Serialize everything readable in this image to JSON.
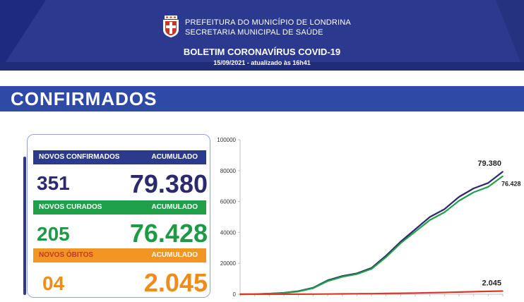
{
  "header": {
    "line1": "PREFEITURA DO MUNICÍPIO DE LONDRINA",
    "line2": "SECRETARIA MUNICIPAL DE SAÚDE",
    "title": "BOLETIM CORONAVÍRUS COVID-19",
    "subtitle": "15/09/2021 - atualizado às 16h41"
  },
  "section_title": "CONFIRMADOS",
  "stats": {
    "confirmados": {
      "label": "NOVOS CONFIRMADOS",
      "acc_label": "ACUMULADO",
      "novos": "351",
      "acumulado": "79.380"
    },
    "curados": {
      "label": "NOVOS CURADOS",
      "acc_label": "ACUMULADO",
      "novos": "205",
      "acumulado": "76.428"
    },
    "obitos": {
      "label": "NOVOS ÓBITOS",
      "acc_label": "ACUMULADO",
      "novos": "04",
      "acumulado": "2.045"
    }
  },
  "colors": {
    "navy": "#2c3a8c",
    "green": "#21a04a",
    "orange": "#f29523",
    "red": "#d93a2b"
  },
  "chart_data": {
    "type": "line",
    "title": "",
    "xlabel": "",
    "ylabel": "",
    "ylim": [
      0,
      100000
    ],
    "yticks": [
      "0",
      "20000",
      "40000",
      "60000",
      "80000",
      "100000"
    ],
    "x": [
      0,
      1,
      2,
      3,
      4,
      5,
      6,
      7,
      8,
      9,
      10,
      11,
      12,
      13,
      14,
      15,
      16,
      17,
      18
    ],
    "series": [
      {
        "values": [
          0,
          100,
          400,
          900,
          2000,
          4200,
          9000,
          11800,
          13500,
          17000,
          25000,
          34000,
          42000,
          50000,
          55000,
          63000,
          68500,
          72000,
          79380
        ],
        "end_label": "79.380",
        "color": "#2c2a6e"
      },
      {
        "values": [
          0,
          80,
          350,
          800,
          1800,
          3900,
          8500,
          11300,
          13000,
          16400,
          24000,
          33000,
          40500,
          48000,
          53000,
          60500,
          66000,
          69500,
          76428
        ],
        "end_label": "76.428",
        "color": "#21a04a"
      },
      {
        "values": [
          0,
          5,
          15,
          30,
          50,
          90,
          150,
          220,
          300,
          380,
          480,
          620,
          780,
          950,
          1150,
          1400,
          1650,
          1850,
          2045
        ],
        "end_label": "2.045",
        "color": "#d93a2b"
      }
    ]
  }
}
